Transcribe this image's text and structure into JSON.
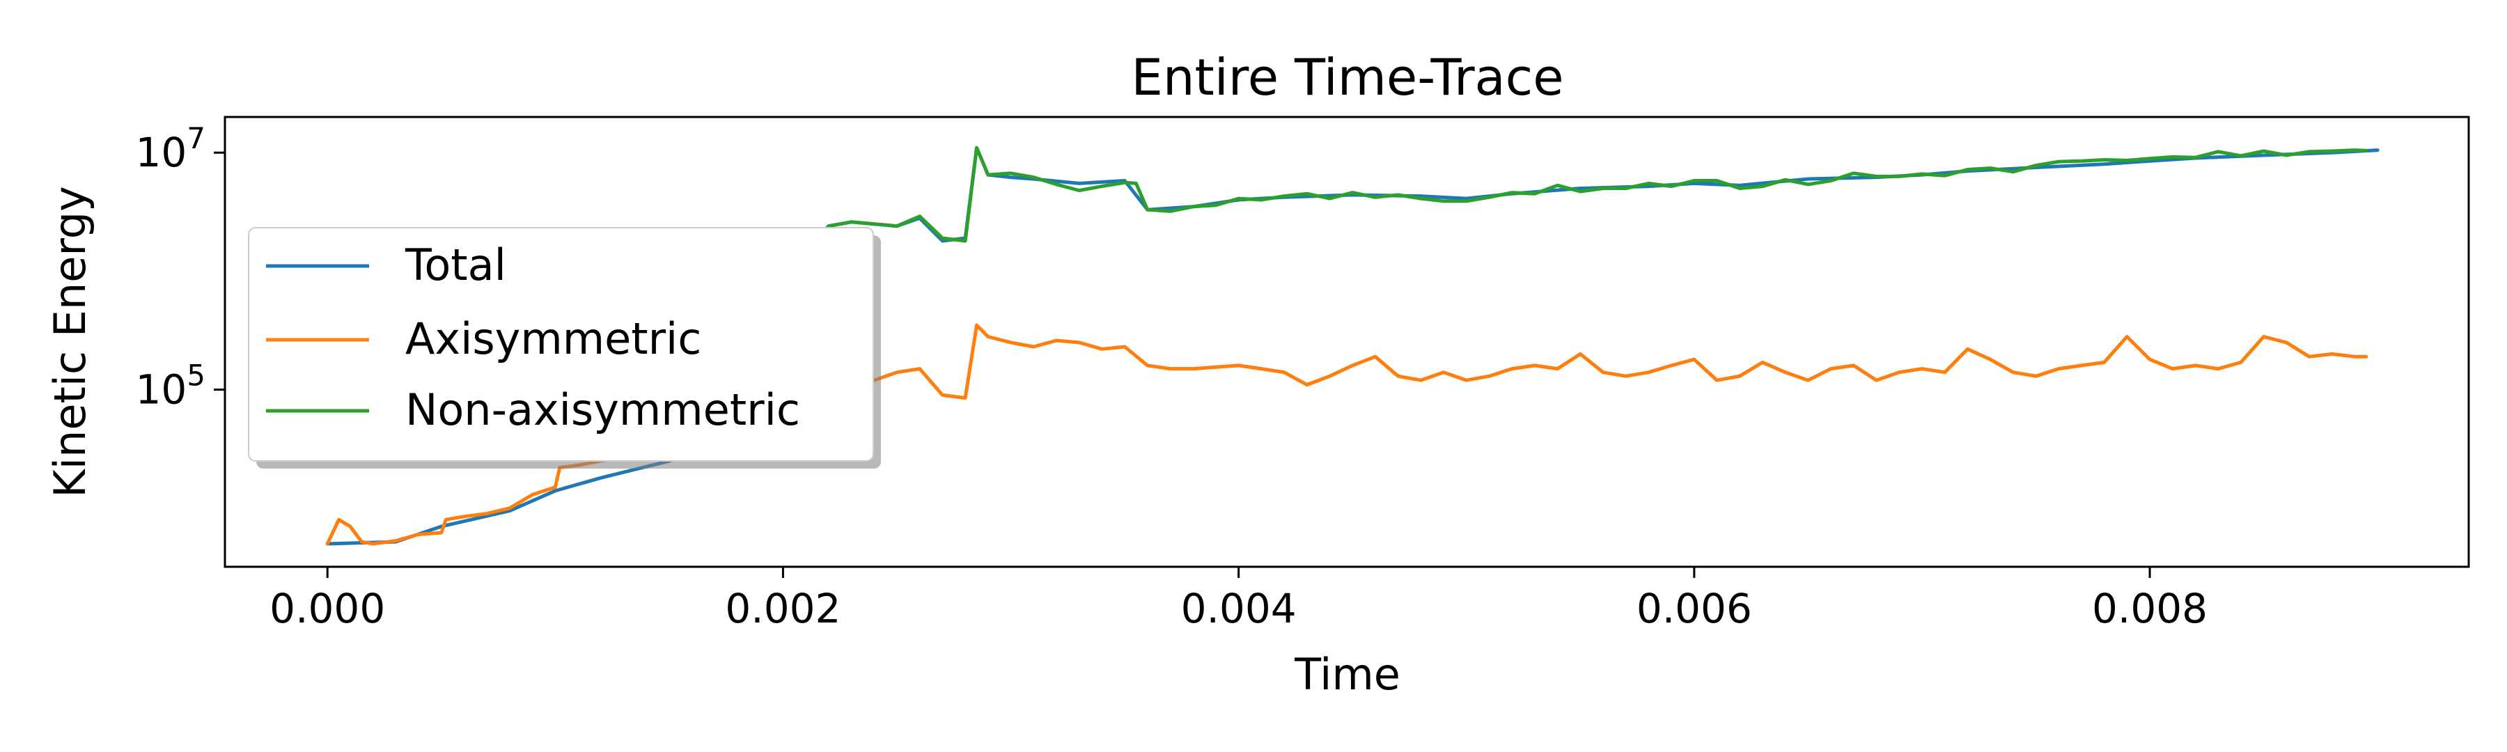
{
  "chart_data": {
    "type": "line",
    "title": "Entire Time-Trace",
    "xlabel": "Time",
    "ylabel": "Kinetic Energy",
    "yscale": "log",
    "xlim": [
      -0.00045,
      0.0094
    ],
    "ylim": [
      3200,
      20000000
    ],
    "x_ticks": [
      0.0,
      0.002,
      0.004,
      0.006,
      0.008
    ],
    "x_tick_labels": [
      "0.000",
      "0.002",
      "0.004",
      "0.006",
      "0.008"
    ],
    "y_ticks": [
      100000,
      10000000
    ],
    "y_tick_labels": [
      {
        "base": "10",
        "exp": "5"
      },
      {
        "base": "10",
        "exp": "7"
      }
    ],
    "grid": false,
    "legend_position": "left",
    "series": [
      {
        "name": "Total",
        "color": "#1f77b4",
        "x": [
          0.0,
          0.0003,
          0.0005,
          0.0008,
          0.001,
          0.0012,
          0.0015,
          0.0018,
          0.002,
          0.0022,
          0.0023,
          0.0025,
          0.0026,
          0.0027,
          0.0028,
          0.00285,
          0.0029,
          0.003,
          0.0031,
          0.0033,
          0.0035,
          0.0036,
          0.0038,
          0.004,
          0.0042,
          0.0045,
          0.0048,
          0.005,
          0.0052,
          0.0055,
          0.0058,
          0.006,
          0.0062,
          0.0065,
          0.0068,
          0.007,
          0.0072,
          0.0075,
          0.0078,
          0.008,
          0.0082,
          0.0085,
          0.0088,
          0.009
        ],
        "values": [
          5000,
          5200,
          7000,
          9500,
          14000,
          18000,
          25000,
          40000,
          800000,
          2400000,
          2600000,
          2400000,
          2800000,
          1800000,
          1900000,
          11000000,
          6500000,
          6200000,
          6000000,
          5500000,
          5800000,
          3300000,
          3500000,
          4000000,
          4200000,
          4400000,
          4300000,
          4100000,
          4500000,
          5000000,
          5200000,
          5500000,
          5300000,
          6000000,
          6200000,
          6500000,
          7000000,
          7500000,
          8000000,
          8500000,
          9000000,
          9500000,
          10000000,
          10500000
        ]
      },
      {
        "name": "Axisymmetric",
        "color": "#ff7f0e",
        "x": [
          0.0,
          5e-05,
          0.0001,
          0.00015,
          0.0002,
          0.0003,
          0.0004,
          0.0005,
          0.00052,
          0.0006,
          0.0007,
          0.0008,
          0.0009,
          0.001,
          0.00102,
          0.0011,
          0.0012,
          0.0013,
          0.0014,
          0.0015,
          0.0016,
          0.0017,
          0.0018,
          0.0019,
          0.002,
          0.0021,
          0.0022,
          0.0023,
          0.0024,
          0.0025,
          0.0026,
          0.0027,
          0.0028,
          0.00285,
          0.0029,
          0.003,
          0.0031,
          0.0032,
          0.0033,
          0.0034,
          0.0035,
          0.0036,
          0.0037,
          0.0038,
          0.0039,
          0.004,
          0.0041,
          0.0042,
          0.0043,
          0.0044,
          0.0045,
          0.0046,
          0.0047,
          0.0048,
          0.0049,
          0.005,
          0.0051,
          0.0052,
          0.0053,
          0.0054,
          0.0055,
          0.0056,
          0.0057,
          0.0058,
          0.0059,
          0.006,
          0.0061,
          0.0062,
          0.0063,
          0.0064,
          0.0065,
          0.0066,
          0.0067,
          0.0068,
          0.0069,
          0.007,
          0.0071,
          0.0072,
          0.0073,
          0.0074,
          0.0075,
          0.0076,
          0.0077,
          0.0078,
          0.0079,
          0.008,
          0.0081,
          0.0082,
          0.0083,
          0.0084,
          0.0085,
          0.0086,
          0.0087,
          0.0088,
          0.0089,
          0.00895
        ],
        "values": [
          5000,
          8000,
          7000,
          5200,
          5000,
          5300,
          6000,
          6200,
          8000,
          8500,
          9000,
          10000,
          13000,
          15000,
          22000,
          23000,
          25000,
          27000,
          28000,
          30000,
          32000,
          30000,
          31000,
          30000,
          35000,
          60000,
          80000,
          110000,
          120000,
          140000,
          150000,
          90000,
          85000,
          350000,
          280000,
          250000,
          230000,
          260000,
          250000,
          220000,
          230000,
          160000,
          150000,
          150000,
          155000,
          160000,
          150000,
          140000,
          110000,
          130000,
          160000,
          190000,
          130000,
          120000,
          140000,
          120000,
          130000,
          150000,
          160000,
          150000,
          200000,
          140000,
          130000,
          140000,
          160000,
          180000,
          120000,
          130000,
          170000,
          140000,
          120000,
          150000,
          160000,
          120000,
          140000,
          150000,
          140000,
          220000,
          180000,
          140000,
          130000,
          150000,
          160000,
          170000,
          280000,
          180000,
          150000,
          160000,
          150000,
          170000,
          280000,
          250000,
          190000,
          200000,
          190000,
          190000
        ]
      },
      {
        "name": "Non-axisymmetric",
        "color": "#2ca02c",
        "x": [
          0.0022,
          0.0023,
          0.0024,
          0.0025,
          0.0026,
          0.0027,
          0.0028,
          0.00285,
          0.0029,
          0.003,
          0.0031,
          0.0032,
          0.0033,
          0.0034,
          0.0035,
          0.00355,
          0.0036,
          0.0037,
          0.0038,
          0.0039,
          0.004,
          0.0041,
          0.0042,
          0.0043,
          0.0044,
          0.0045,
          0.0046,
          0.0047,
          0.0048,
          0.0049,
          0.005,
          0.0051,
          0.0052,
          0.0053,
          0.0054,
          0.0055,
          0.0056,
          0.0057,
          0.0058,
          0.0059,
          0.006,
          0.0061,
          0.0062,
          0.0063,
          0.0064,
          0.0065,
          0.0066,
          0.0067,
          0.0068,
          0.0069,
          0.007,
          0.0071,
          0.0072,
          0.0073,
          0.0074,
          0.0075,
          0.0076,
          0.0077,
          0.0078,
          0.0079,
          0.008,
          0.0081,
          0.0082,
          0.0083,
          0.0084,
          0.0085,
          0.0086,
          0.0087,
          0.0088,
          0.0089,
          0.00895
        ],
        "values": [
          2400000,
          2600000,
          2500000,
          2400000,
          2900000,
          1900000,
          1800000,
          11000000,
          6500000,
          6700000,
          6200000,
          5400000,
          4800000,
          5200000,
          5600000,
          5500000,
          3300000,
          3200000,
          3500000,
          3600000,
          4100000,
          4000000,
          4300000,
          4500000,
          4100000,
          4600000,
          4200000,
          4400000,
          4100000,
          3900000,
          3900000,
          4200000,
          4600000,
          4500000,
          5300000,
          4700000,
          5000000,
          5000000,
          5500000,
          5200000,
          5800000,
          5800000,
          5000000,
          5200000,
          5900000,
          5400000,
          5800000,
          6700000,
          6300000,
          6300000,
          6600000,
          6400000,
          7200000,
          7400000,
          6900000,
          7800000,
          8400000,
          8500000,
          8700000,
          8600000,
          8900000,
          9200000,
          9100000,
          10200000,
          9400000,
          10300000,
          9500000,
          10200000,
          10300000,
          10500000,
          10400000
        ]
      }
    ]
  }
}
